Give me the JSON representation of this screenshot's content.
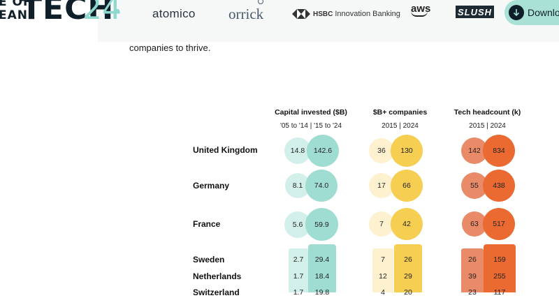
{
  "header": {
    "logo": {
      "line1": "E OF",
      "line2": "EAN",
      "word": "TECH",
      "number": "24"
    },
    "sponsors": {
      "atomico": "atomico",
      "orrick": "orrick",
      "hsbc_brand": "HSBC",
      "hsbc_sub": "Innovation Banking",
      "aws": "aws",
      "slush": "SLUSH"
    },
    "download_label": "Downloa"
  },
  "intro_text": "companies to thrive.",
  "columns": [
    {
      "title": "Capital invested ($B)",
      "sub": "'05 to '14 | '15 to '24"
    },
    {
      "title": "$B+ companies",
      "sub": "2015 | 2024"
    },
    {
      "title": "Tech headcount (k)",
      "sub": "2015 | 2024"
    }
  ],
  "rows": [
    {
      "country": "United Kingdom",
      "capital": [
        "14.8",
        "142.6"
      ],
      "bplus": [
        "36",
        "130"
      ],
      "headcount": [
        "142",
        "834"
      ]
    },
    {
      "country": "Germany",
      "capital": [
        "8.1",
        "74.0"
      ],
      "bplus": [
        "17",
        "66"
      ],
      "headcount": [
        "55",
        "438"
      ]
    },
    {
      "country": "France",
      "capital": [
        "5.6",
        "59.9"
      ],
      "bplus": [
        "7",
        "42"
      ],
      "headcount": [
        "63",
        "517"
      ]
    },
    {
      "country": "Sweden",
      "capital": [
        "2.7",
        "29.4"
      ],
      "bplus": [
        "7",
        "26"
      ],
      "headcount": [
        "26",
        "159"
      ]
    },
    {
      "country": "Netherlands",
      "capital": [
        "1.7",
        "18.4"
      ],
      "bplus": [
        "12",
        "29"
      ],
      "headcount": [
        "39",
        "255"
      ]
    },
    {
      "country": "Switzerland",
      "capital": [
        "1.7",
        "19.8"
      ],
      "bplus": [
        "4",
        "20"
      ],
      "headcount": [
        "23",
        "117"
      ]
    }
  ],
  "colors": {
    "teal_light": "#d3efea",
    "teal_dark": "#9fdcd2",
    "yellow_light": "#fdf1cf",
    "yellow_dark": "#f6cf52",
    "orange_light": "#e98a68",
    "orange_dark": "#ea6a31"
  }
}
